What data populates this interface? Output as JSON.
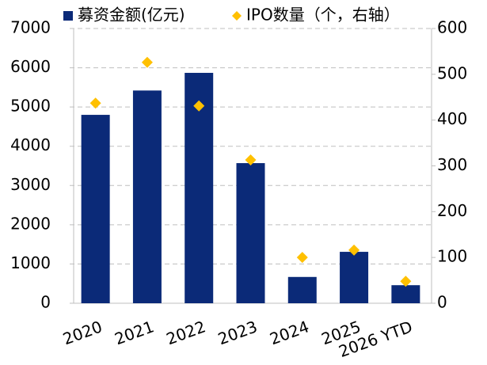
{
  "chart_data": {
    "type": "bar",
    "categories": [
      "2020",
      "2021",
      "2022",
      "2023",
      "2024",
      "2025",
      "2026 YTD"
    ],
    "series": [
      {
        "name": "募资金额(亿元)",
        "color": "#0b2a78",
        "values": [
          4800,
          5420,
          5870,
          3570,
          670,
          1310,
          460
        ]
      },
      {
        "name": "IPO数量（个，右轴）",
        "color": "#ffc000",
        "axis": "y2",
        "marker": "diamond",
        "values": [
          437,
          526,
          431,
          313,
          100,
          116,
          48
        ]
      }
    ],
    "ylim": [
      0,
      7000
    ],
    "yticks": [
      0,
      1000,
      2000,
      3000,
      4000,
      5000,
      6000,
      7000
    ],
    "y2lim": [
      0,
      600
    ],
    "y2ticks": [
      0,
      100,
      200,
      300,
      400,
      500,
      600
    ],
    "grid": true,
    "legend": "top"
  }
}
